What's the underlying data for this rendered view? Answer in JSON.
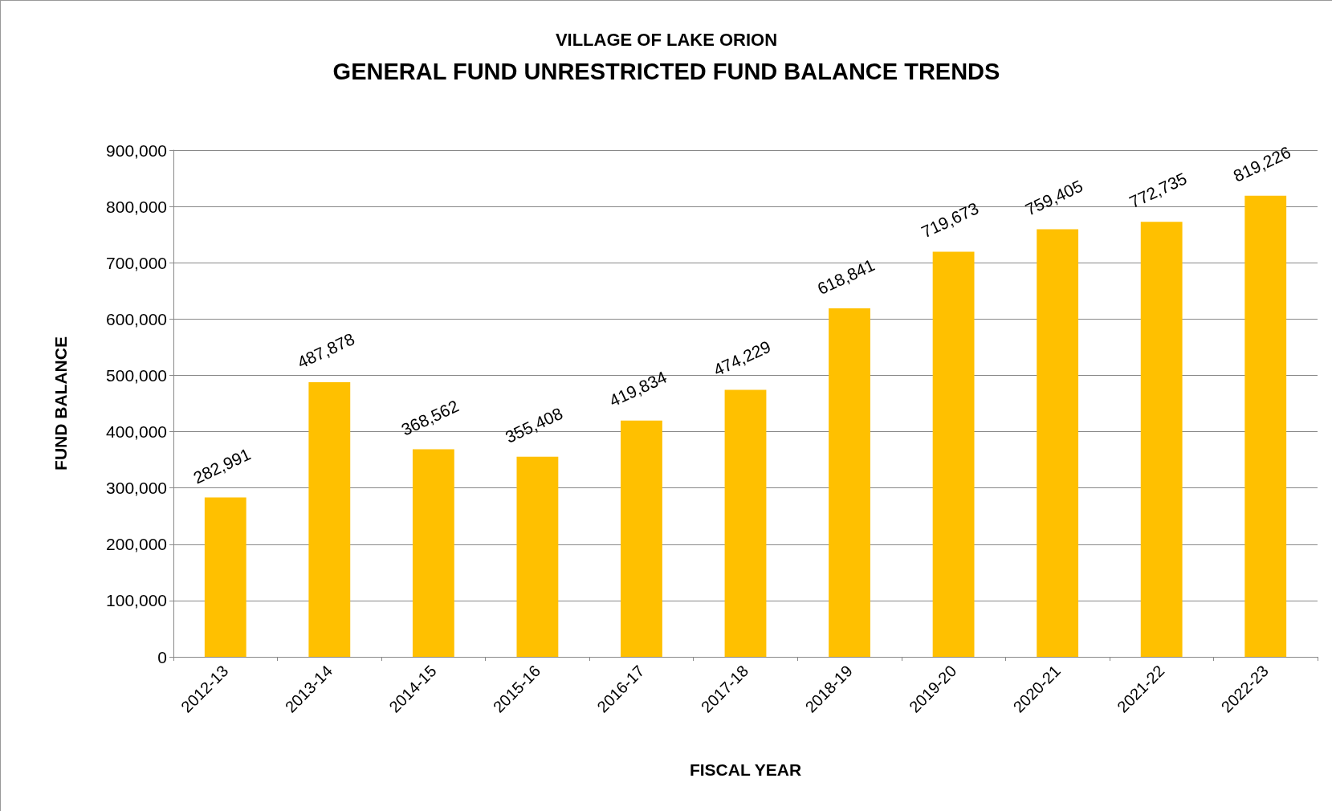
{
  "chart_data": {
    "type": "bar",
    "subtitle": "VILLAGE OF LAKE ORION",
    "title": "GENERAL FUND UNRESTRICTED FUND BALANCE TRENDS",
    "xlabel": "FISCAL YEAR",
    "ylabel": "FUND BALANCE",
    "categories": [
      "2012-13",
      "2013-14",
      "2014-15",
      "2015-16",
      "2016-17",
      "2017-18",
      "2018-19",
      "2019-20",
      "2020-21",
      "2021-22",
      "2022-23"
    ],
    "values": [
      282991,
      487878,
      368562,
      355408,
      419834,
      474229,
      618841,
      719673,
      759405,
      772735,
      819226
    ],
    "value_labels": [
      "282,991",
      "487,878",
      "368,562",
      "355,408",
      "419,834",
      "474,229",
      "618,841",
      "719,673",
      "759,405",
      "772,735",
      "819,226"
    ],
    "color": "#ffc000",
    "ylim": [
      0,
      900000
    ],
    "yticks": [
      0,
      {
        "value": 100000,
        "label": "100,000"
      },
      {
        "value": 200000,
        "label": "200,000"
      },
      {
        "value": 300000,
        "label": "300,000"
      },
      {
        "value": 400000,
        "label": "400,000"
      },
      {
        "value": 500000,
        "label": "500,000"
      },
      {
        "value": 600000,
        "label": "600,000"
      },
      {
        "value": 700000,
        "label": "700,000"
      },
      {
        "value": 800000,
        "label": "800,000"
      },
      {
        "value": 900000,
        "label": "900,000"
      }
    ],
    "grid": "y"
  }
}
